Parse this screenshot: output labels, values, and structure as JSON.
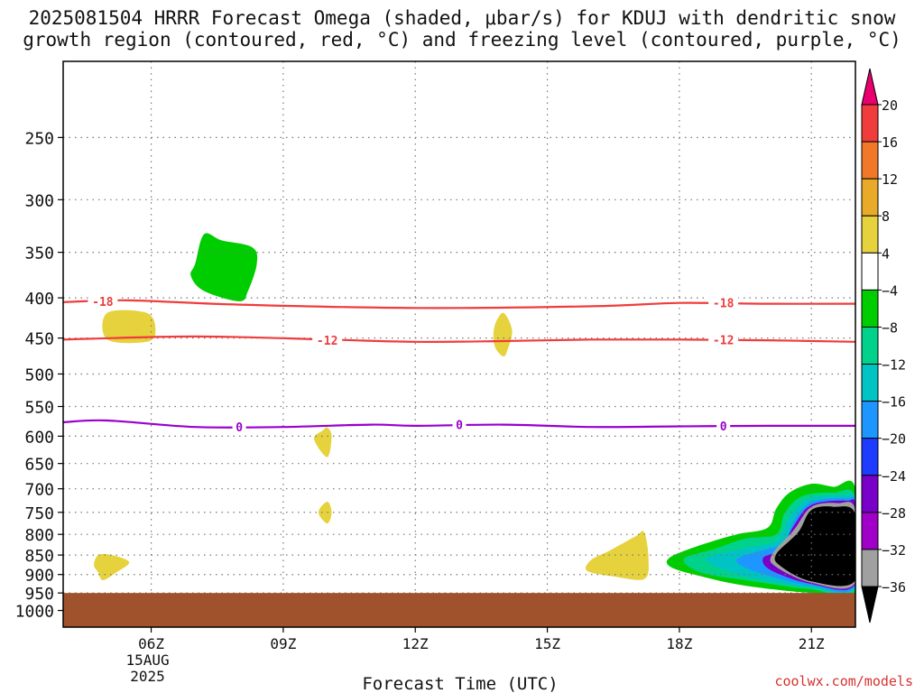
{
  "chart_data": {
    "type": "contour",
    "title_line1": "2025081504 HRRR Forecast Omega (shaded, μbar/s) for KDUJ with dendritic snow",
    "title_line2": "growth region (contoured, red, °C) and freezing level (contoured, purple, °C)",
    "xlabel": "Forecast Time (UTC)",
    "x_ticks": [
      {
        "label": "06Z",
        "hour": 6
      },
      {
        "label": "09Z",
        "hour": 9
      },
      {
        "label": "12Z",
        "hour": 12
      },
      {
        "label": "15Z",
        "hour": 15
      },
      {
        "label": "18Z",
        "hour": 18
      },
      {
        "label": "21Z",
        "hour": 21
      }
    ],
    "x_date_label": "15AUG",
    "x_year_label": "2025",
    "xlim_hours": [
      4,
      22
    ],
    "ylabel": "",
    "y_ticks": [
      250,
      300,
      350,
      400,
      450,
      500,
      550,
      600,
      650,
      700,
      750,
      800,
      850,
      900,
      950,
      1000
    ],
    "ylim_hPa": [
      200,
      1050
    ],
    "y_scale": "log-pressure",
    "grid": true,
    "surface_pressure_hPa": 950,
    "colorbar": {
      "levels": [
        "20",
        "16",
        "12",
        "8",
        "4",
        "−4",
        "−8",
        "−12",
        "−16",
        "−20",
        "−24",
        "−28",
        "−32",
        "−36"
      ],
      "colors": [
        "#e8006e",
        "#f03c3c",
        "#f07828",
        "#e8aa28",
        "#e6d23c",
        "#ffffff",
        "#00cd00",
        "#00d28c",
        "#00c3c3",
        "#1e96ff",
        "#1e3cff",
        "#7800c8",
        "#a000c8",
        "#a0a0a0",
        "#000000"
      ]
    },
    "contours": [
      {
        "name": "-18",
        "color": "#f03c3c",
        "points": [
          [
            4.0,
            405
          ],
          [
            5.5,
            403
          ],
          [
            8.0,
            408
          ],
          [
            12.0,
            412
          ],
          [
            16.0,
            410
          ],
          [
            18.0,
            406
          ],
          [
            20.0,
            407
          ],
          [
            22.0,
            407
          ]
        ],
        "labels": [
          [
            4.9,
            404
          ],
          [
            19.0,
            406
          ]
        ]
      },
      {
        "name": "-12",
        "color": "#f03c3c",
        "points": [
          [
            4.0,
            452
          ],
          [
            7.0,
            448
          ],
          [
            10.0,
            452
          ],
          [
            12.0,
            455
          ],
          [
            14.0,
            454
          ],
          [
            16.0,
            452
          ],
          [
            18.0,
            452
          ],
          [
            20.0,
            453
          ],
          [
            22.0,
            455
          ]
        ],
        "labels": [
          [
            10.0,
            453
          ],
          [
            19.0,
            452
          ]
        ]
      },
      {
        "name": "0",
        "color": "#9900cc",
        "points": [
          [
            4.0,
            576
          ],
          [
            5.0,
            573
          ],
          [
            7.0,
            584
          ],
          [
            9.0,
            584
          ],
          [
            11.0,
            580
          ],
          [
            12.0,
            582
          ],
          [
            14.0,
            580
          ],
          [
            16.0,
            584
          ],
          [
            18.0,
            583
          ],
          [
            20.0,
            582
          ],
          [
            22.0,
            582
          ]
        ],
        "labels": [
          [
            8.0,
            584
          ],
          [
            13.0,
            580
          ],
          [
            19.0,
            582
          ]
        ]
      }
    ],
    "shaded_regions": [
      {
        "omega_level": "-4",
        "color": "#00cd00",
        "points": [
          [
            7.0,
            362
          ],
          [
            7.2,
            332
          ],
          [
            7.6,
            338
          ],
          [
            8.3,
            345
          ],
          [
            8.4,
            362
          ],
          [
            8.2,
            392
          ],
          [
            8.0,
            404
          ],
          [
            7.2,
            392
          ],
          [
            6.9,
            375
          ]
        ]
      },
      {
        "omega_level": "4",
        "color": "#e6d23c",
        "points": [
          [
            5.0,
            418
          ],
          [
            5.9,
            418
          ],
          [
            6.1,
            440
          ],
          [
            5.9,
            455
          ],
          [
            5.0,
            452
          ]
        ]
      },
      {
        "omega_level": "4",
        "color": "#e6d23c",
        "points": [
          [
            14.0,
            418
          ],
          [
            14.2,
            440
          ],
          [
            14.1,
            465
          ],
          [
            14.0,
            475
          ],
          [
            13.8,
            460
          ],
          [
            13.8,
            435
          ]
        ]
      },
      {
        "omega_level": "4",
        "color": "#e6d23c",
        "points": [
          [
            10.0,
            585
          ],
          [
            10.1,
            600
          ],
          [
            10.0,
            638
          ],
          [
            9.7,
            605
          ],
          [
            9.9,
            590
          ]
        ]
      },
      {
        "omega_level": "4",
        "color": "#e6d23c",
        "points": [
          [
            10.0,
            727
          ],
          [
            10.1,
            750
          ],
          [
            10.0,
            775
          ],
          [
            9.8,
            750
          ]
        ]
      },
      {
        "omega_level": "4",
        "color": "#e6d23c",
        "points": [
          [
            4.8,
            850
          ],
          [
            5.1,
            850
          ],
          [
            5.5,
            868
          ],
          [
            5.2,
            895
          ],
          [
            4.9,
            915
          ],
          [
            4.8,
            895
          ],
          [
            4.7,
            875
          ]
        ]
      },
      {
        "omega_level": "4",
        "color": "#e6d23c",
        "points": [
          [
            16.0,
            862
          ],
          [
            16.4,
            840
          ],
          [
            17.0,
            805
          ],
          [
            17.2,
            795
          ],
          [
            17.3,
            860
          ],
          [
            17.2,
            912
          ],
          [
            16.5,
            905
          ],
          [
            15.9,
            890
          ]
        ]
      },
      {
        "omega_level": "-4",
        "color": "#00cd00",
        "points": [
          [
            17.8,
            855
          ],
          [
            18.5,
            825
          ],
          [
            19.3,
            800
          ],
          [
            20.0,
            785
          ],
          [
            20.2,
            742
          ],
          [
            20.5,
            708
          ],
          [
            21.0,
            690
          ],
          [
            21.5,
            696
          ],
          [
            22.0,
            700
          ],
          [
            22.0,
            950
          ],
          [
            21.0,
            950
          ],
          [
            19.5,
            930
          ],
          [
            18.5,
            905
          ],
          [
            17.8,
            880
          ]
        ]
      },
      {
        "omega_level": "-8",
        "color": "#00d28c",
        "points": [
          [
            18.1,
            860
          ],
          [
            18.8,
            835
          ],
          [
            19.5,
            810
          ],
          [
            20.2,
            800
          ],
          [
            20.4,
            750
          ],
          [
            20.8,
            715
          ],
          [
            21.5,
            708
          ],
          [
            22.0,
            720
          ],
          [
            22.0,
            940
          ],
          [
            21.0,
            940
          ],
          [
            19.5,
            915
          ],
          [
            18.5,
            895
          ]
        ]
      },
      {
        "omega_level": "-12",
        "color": "#00c3c3",
        "points": [
          [
            18.6,
            862
          ],
          [
            19.4,
            835
          ],
          [
            20.2,
            815
          ],
          [
            20.5,
            760
          ],
          [
            20.9,
            722
          ],
          [
            21.7,
            714
          ],
          [
            22.0,
            730
          ],
          [
            22.0,
            935
          ],
          [
            21.0,
            935
          ],
          [
            19.5,
            905
          ]
        ]
      },
      {
        "omega_level": "-16",
        "color": "#1e96ff",
        "points": [
          [
            19.3,
            862
          ],
          [
            20.0,
            835
          ],
          [
            20.4,
            820
          ],
          [
            20.6,
            770
          ],
          [
            21.0,
            728
          ],
          [
            21.8,
            720
          ],
          [
            22.0,
            735
          ],
          [
            22.0,
            930
          ],
          [
            21.0,
            930
          ],
          [
            19.8,
            895
          ]
        ]
      },
      {
        "omega_level": "-24",
        "color": "#7800c8",
        "points": [
          [
            19.9,
            858
          ],
          [
            20.3,
            835
          ],
          [
            20.6,
            780
          ],
          [
            21.0,
            734
          ],
          [
            21.8,
            725
          ],
          [
            22.0,
            740
          ],
          [
            22.0,
            925
          ],
          [
            21.0,
            925
          ],
          [
            20.1,
            890
          ]
        ]
      },
      {
        "omega_level": "-32",
        "color": "#a0a0a0",
        "points": [
          [
            20.1,
            850
          ],
          [
            20.6,
            790
          ],
          [
            21.0,
            738
          ],
          [
            21.6,
            730
          ],
          [
            22.0,
            745
          ],
          [
            22.0,
            922
          ],
          [
            21.0,
            922
          ],
          [
            20.2,
            880
          ]
        ]
      },
      {
        "omega_level": "-36",
        "color": "#000000",
        "points": [
          [
            20.2,
            848
          ],
          [
            20.7,
            795
          ],
          [
            21.0,
            745
          ],
          [
            21.5,
            738
          ],
          [
            22.0,
            755
          ],
          [
            22.0,
            915
          ],
          [
            21.0,
            918
          ],
          [
            20.3,
            878
          ]
        ]
      }
    ]
  },
  "watermark": "coolwx.com/models"
}
